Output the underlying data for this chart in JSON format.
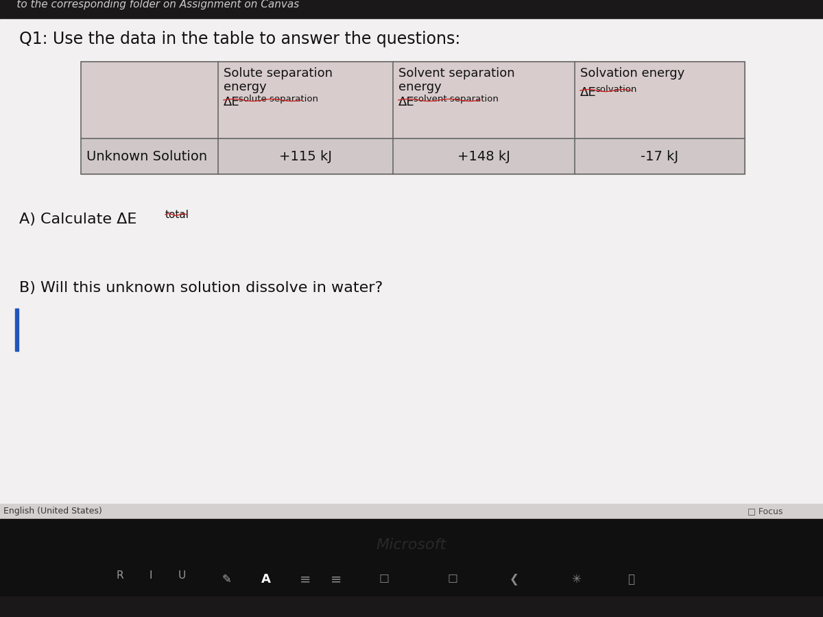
{
  "title_top_partial": "folder on Assignment on Canvas",
  "question": "Q1: Use the data in the table to answer the questions:",
  "col0_header": "",
  "col1_header_l1": "Solute separation",
  "col1_header_l2": "energy",
  "col1_header_delta": "ΔE",
  "col1_header_sub": "solute separation",
  "col2_header_l1": "Solvent separation",
  "col2_header_l2": "energy",
  "col2_header_delta": "ΔE",
  "col2_header_sub": "solvent separation",
  "col3_header_l1": "Solvation energy",
  "col3_header_delta": "ΔE",
  "col3_header_sub": "solvation",
  "row_label": "Unknown Solution",
  "row_val1": "+115 kJ",
  "row_val2": "+148 kJ",
  "row_val3": "-17 kJ",
  "part_a_prefix": "A) Calculate ΔE",
  "part_a_sub": "total",
  "part_b": "B) Will this unknown solution dissolve in water?",
  "bg_color": "#e0dede",
  "content_bg": "#f0eeee",
  "table_bg": "#f5f3f3",
  "table_border": "#666666",
  "text_color": "#111111",
  "squiggle_color": "#cc2222",
  "bottom_dark": "#1a1818",
  "bottom_mid": "#252020",
  "status_text_color": "#aaaaaa",
  "focus_text": "□ Focus",
  "english_text": "English (United States)"
}
